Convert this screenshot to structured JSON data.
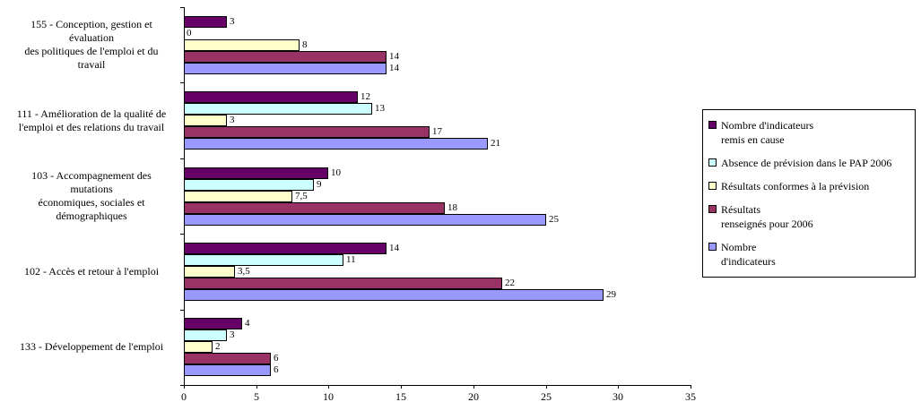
{
  "chart_data": {
    "type": "bar",
    "orientation": "horizontal",
    "title": "",
    "xlabel": "",
    "ylabel": "",
    "xlim": [
      0,
      35
    ],
    "xticks": [
      0,
      5,
      10,
      15,
      20,
      25,
      30,
      35
    ],
    "grid": false,
    "legend_position": "right",
    "categories": [
      {
        "label": "155 - Conception, gestion et évaluation des politiques de l'emploi et du travail",
        "label_lines": [
          "155 - Conception, gestion et",
          "évaluation",
          "des politiques de l'emploi et du",
          "travail"
        ]
      },
      {
        "label": "111 - Amélioration de la qualité de l'emploi et des relations du travail",
        "label_lines": [
          "111 - Amélioration de la qualité de",
          "l'emploi et des relations du travail"
        ]
      },
      {
        "label": "103 - Accompagnement des mutations économiques, sociales et démographiques",
        "label_lines": [
          "103 - Accompagnement des",
          "mutations",
          "économiques, sociales et",
          "démographiques"
        ]
      },
      {
        "label": "102 - Accès et retour à l'emploi",
        "label_lines": [
          "102 - Accès et retour à l'emploi"
        ]
      },
      {
        "label": "133 - Développement de l'emploi",
        "label_lines": [
          "133 - Développement de l'emploi"
        ]
      }
    ],
    "series": [
      {
        "name": "Nombre d'indicateurs remis en cause",
        "name_lines": [
          "Nombre d'indicateurs",
          "remis en cause"
        ],
        "color": "#660066",
        "values": [
          3,
          12,
          10,
          14,
          4
        ],
        "labels": [
          "3",
          "12",
          "10",
          "14",
          "4"
        ]
      },
      {
        "name": "Absence de prévision dans le PAP 2006",
        "name_lines": [
          "Absence de prévision dans le PAP 2006"
        ],
        "color": "#CCFFFF",
        "values": [
          0,
          13,
          9,
          11,
          3
        ],
        "labels": [
          "0",
          "13",
          "9",
          "11",
          "3"
        ]
      },
      {
        "name": "Résultats conformes à la prévision",
        "name_lines": [
          "Résultats conformes à la prévision"
        ],
        "color": "#FFFFCC",
        "values": [
          8,
          3,
          7.5,
          3.5,
          2
        ],
        "labels": [
          "8",
          "3",
          "7,5",
          "3,5",
          "2"
        ]
      },
      {
        "name": "Résultats renseignés pour 2006",
        "name_lines": [
          "Résultats",
          "renseignés pour 2006"
        ],
        "color": "#993366",
        "values": [
          14,
          17,
          18,
          22,
          6
        ],
        "labels": [
          "14",
          "17",
          "18",
          "22",
          "6"
        ]
      },
      {
        "name": "Nombre d'indicateurs",
        "name_lines": [
          "Nombre",
          "d'indicateurs"
        ],
        "color": "#9999FF",
        "values": [
          14,
          21,
          25,
          29,
          6
        ],
        "labels": [
          "14",
          "21",
          "25",
          "29",
          "6"
        ]
      }
    ]
  }
}
